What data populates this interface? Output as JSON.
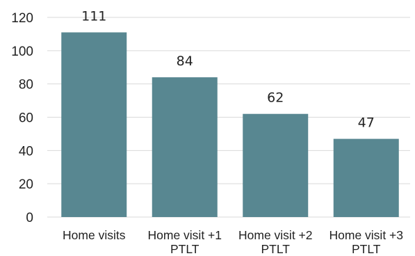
{
  "chart_data": {
    "type": "bar",
    "title": "",
    "xlabel": "",
    "ylabel": "",
    "categories": [
      [
        "Home visits"
      ],
      [
        "Home visit +1",
        "PTLT"
      ],
      [
        "Home visit +2",
        "PTLT"
      ],
      [
        "Home visit +3",
        "PTLT"
      ]
    ],
    "values": [
      111,
      84,
      62,
      47
    ],
    "data_labels": [
      "111",
      "84",
      "62",
      "47"
    ],
    "ylim": [
      0,
      120
    ],
    "yticks": [
      0,
      20,
      40,
      60,
      80,
      100,
      120
    ],
    "grid": true,
    "legend": "none",
    "colors": {
      "bar": "#588791",
      "grid": "#d9d9d9",
      "text": "#222222"
    }
  }
}
